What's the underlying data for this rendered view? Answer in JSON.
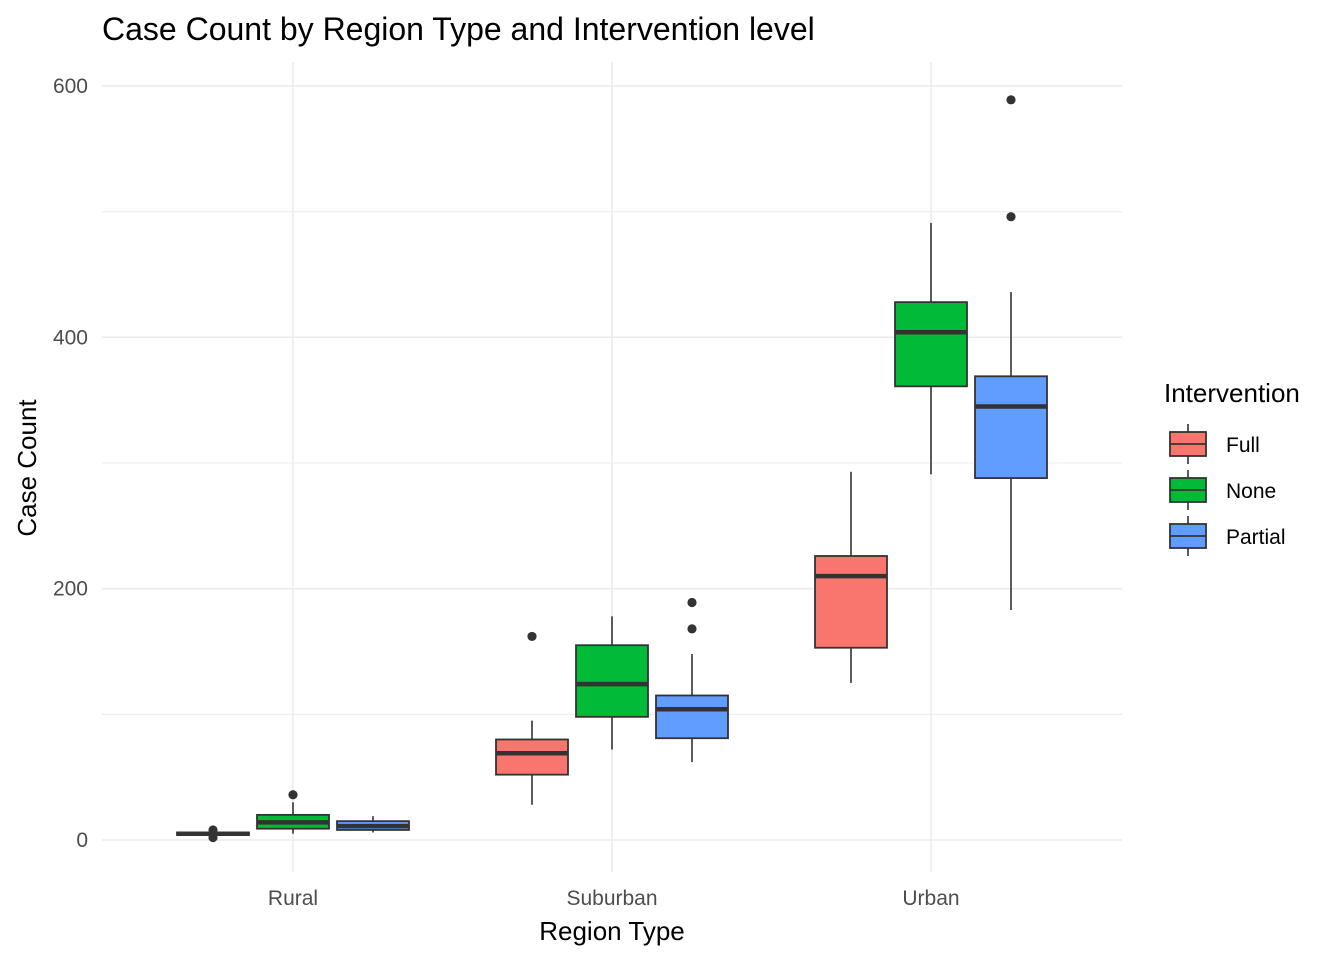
{
  "chart_data": {
    "type": "boxplot",
    "title": "Case Count by Region Type and Intervention level",
    "xlabel": "Region Type",
    "ylabel": "Case Count",
    "categories": [
      "Rural",
      "Suburban",
      "Urban"
    ],
    "ylim": [
      -25,
      620
    ],
    "yticks": [
      0,
      200,
      400,
      600
    ],
    "yminor": [
      100,
      300,
      500
    ],
    "grid": true,
    "legend": {
      "title": "Intervention",
      "position": "right"
    },
    "series": [
      {
        "name": "Full",
        "color": "#F8766D",
        "boxes": [
          {
            "category": "Rural",
            "lower_whisker": 3,
            "q1": 4,
            "median": 5,
            "q3": 6,
            "upper_whisker": 7,
            "outliers": [
              2,
              8
            ]
          },
          {
            "category": "Suburban",
            "lower_whisker": 28,
            "q1": 52,
            "median": 69,
            "q3": 80,
            "upper_whisker": 95,
            "outliers": [
              162
            ]
          },
          {
            "category": "Urban",
            "lower_whisker": 125,
            "q1": 153,
            "median": 210,
            "q3": 226,
            "upper_whisker": 293,
            "outliers": []
          }
        ]
      },
      {
        "name": "None",
        "color": "#00BA38",
        "boxes": [
          {
            "category": "Rural",
            "lower_whisker": 5,
            "q1": 9,
            "median": 14,
            "q3": 20,
            "upper_whisker": 30,
            "outliers": [
              36
            ]
          },
          {
            "category": "Suburban",
            "lower_whisker": 72,
            "q1": 98,
            "median": 124,
            "q3": 155,
            "upper_whisker": 178,
            "outliers": []
          },
          {
            "category": "Urban",
            "lower_whisker": 291,
            "q1": 361,
            "median": 404,
            "q3": 428,
            "upper_whisker": 491,
            "outliers": []
          }
        ]
      },
      {
        "name": "Partial",
        "color": "#619CFF",
        "boxes": [
          {
            "category": "Rural",
            "lower_whisker": 6,
            "q1": 8,
            "median": 11,
            "q3": 15,
            "upper_whisker": 19,
            "outliers": []
          },
          {
            "category": "Suburban",
            "lower_whisker": 62,
            "q1": 81,
            "median": 104,
            "q3": 115,
            "upper_whisker": 148,
            "outliers": [
              168,
              189
            ]
          },
          {
            "category": "Urban",
            "lower_whisker": 183,
            "q1": 288,
            "median": 345,
            "q3": 369,
            "upper_whisker": 436,
            "outliers": [
              496,
              589
            ]
          }
        ]
      }
    ]
  }
}
